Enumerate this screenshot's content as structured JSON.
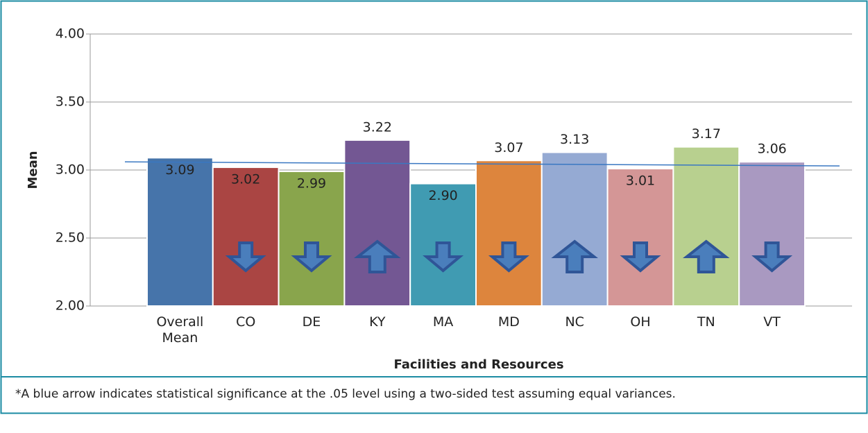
{
  "chart_data": {
    "type": "bar",
    "x_label": "Facilities and Resources",
    "y_label": "Mean",
    "categories": [
      "Overall Mean",
      "CO",
      "DE",
      "KY",
      "MA",
      "MD",
      "NC",
      "OH",
      "TN",
      "VT"
    ],
    "values": [
      3.09,
      3.02,
      2.99,
      3.22,
      2.9,
      3.07,
      3.13,
      3.01,
      3.17,
      3.06
    ],
    "value_labels": [
      "3.09",
      "3.02",
      "2.99",
      "3.22",
      "2.90",
      "3.07",
      "3.13",
      "3.01",
      "3.17",
      "3.06"
    ],
    "label_positions": [
      "inside",
      "inside",
      "inside",
      "above",
      "inside",
      "above",
      "above",
      "inside",
      "above",
      "above"
    ],
    "colors": [
      "#4674aa",
      "#aa4543",
      "#89a54c",
      "#735793",
      "#409bb2",
      "#dd853d",
      "#95aad3",
      "#d49696",
      "#b8d08f",
      "#a999c1"
    ],
    "arrows": [
      null,
      "down",
      "down",
      "up",
      "down",
      "down",
      "up",
      "down",
      "up",
      "down"
    ],
    "trendline": [
      3.06,
      3.03
    ],
    "ylim": [
      2,
      4
    ],
    "yticks": [
      {
        "value": 2,
        "label": "2.00"
      },
      {
        "value": 2.5,
        "label": "2.50"
      },
      {
        "value": 3,
        "label": "3.00"
      },
      {
        "value": 3.5,
        "label": "3.50"
      },
      {
        "value": 4,
        "label": "4.00"
      }
    ],
    "grid": true,
    "footnote": "*A blue arrow indicates statistical significance at the .05 level using a two-sided test assuming equal variances."
  }
}
